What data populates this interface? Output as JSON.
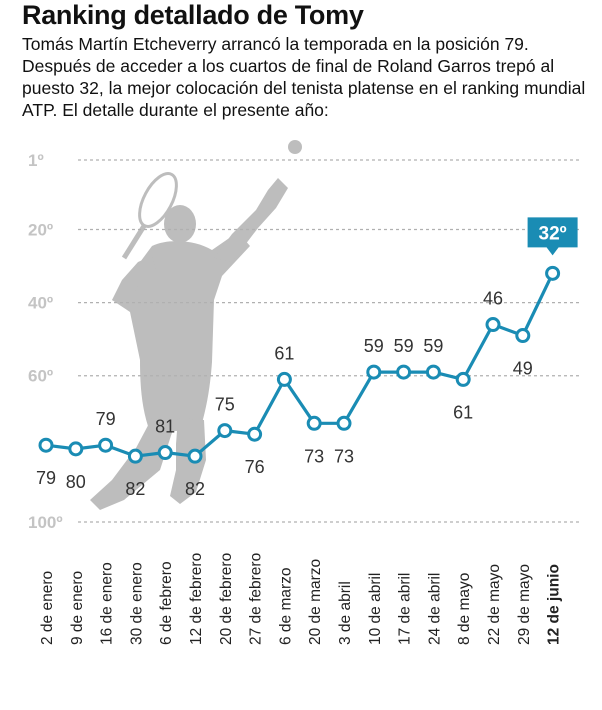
{
  "header": {
    "title": "Ranking detallado de Tomy",
    "intro": "Tomás Martín Etcheverry arrancó la temporada en la posición 79. Después de acceder a los cuartos de final de Roland Garros trepó al puesto 32, la mejor colocación del tenista platense en el ranking mundial ATP. El detalle durante el presente año:"
  },
  "colors": {
    "line": "#1a8cb4",
    "grid": "#b0b0b0",
    "silhouette": "#bdbdbd",
    "callout": "#1a8cb4"
  },
  "icons": {
    "illustration": "tennis-player-silhouette-icon"
  },
  "chart_data": {
    "type": "line",
    "title": "Ranking detallado de Tomy",
    "xlabel": "",
    "ylabel": "",
    "y_reversed": true,
    "ylim": [
      1,
      100
    ],
    "y_ticks": [
      {
        "value": 1,
        "label": "1º"
      },
      {
        "value": 20,
        "label": "20º"
      },
      {
        "value": 40,
        "label": "40º"
      },
      {
        "value": 60,
        "label": "60º"
      },
      {
        "value": 100,
        "label": "100º"
      }
    ],
    "grid": true,
    "categories": [
      "2 de enero",
      "9 de enero",
      "16 de enero",
      "30 de enero",
      "6 de febrero",
      "12 de febrero",
      "20 de febrero",
      "27 de febrero",
      "6 de marzo",
      "20 de marzo",
      "3 de abril",
      "10 de abril",
      "17 de abril",
      "24 de abril",
      "8 de mayo",
      "22 de mayo",
      "29 de mayo",
      "12 de junio"
    ],
    "series": [
      {
        "values": [
          79,
          80,
          79,
          82,
          81,
          82,
          75,
          76,
          61,
          73,
          73,
          59,
          59,
          59,
          61,
          46,
          49,
          32
        ]
      }
    ],
    "label_positions": [
      "below",
      "below",
      "above",
      "below",
      "above",
      "below",
      "above",
      "below",
      "above",
      "below",
      "below",
      "above",
      "above",
      "above",
      "below",
      "above",
      "below",
      "callout"
    ],
    "callout": {
      "index": 17,
      "text": "32º"
    },
    "highlight_last_category": true
  }
}
